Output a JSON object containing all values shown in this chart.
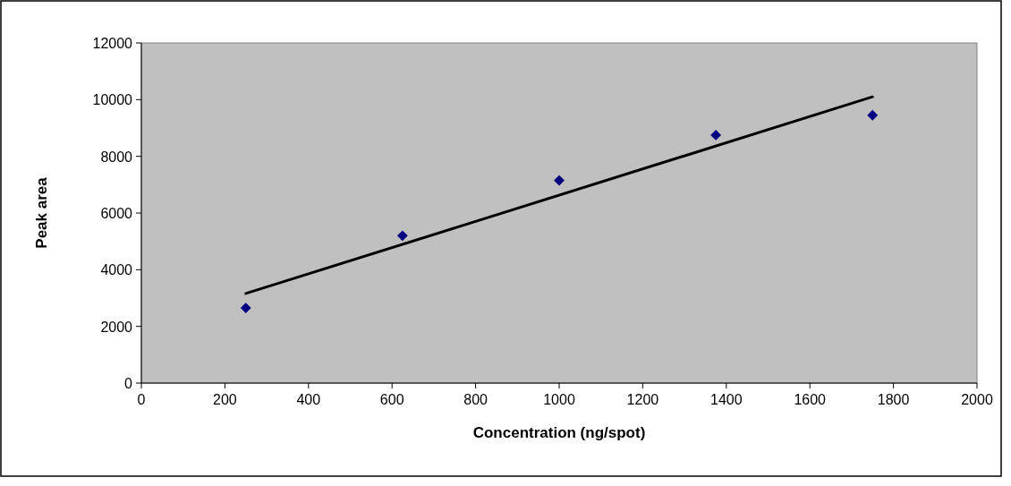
{
  "chart_data": {
    "type": "scatter",
    "xlabel": "Concentration (ng/spot)",
    "ylabel": "Peak area",
    "xlim": [
      0,
      2000
    ],
    "xticks": [
      0,
      200,
      400,
      600,
      800,
      1000,
      1200,
      1400,
      1600,
      1800,
      2000
    ],
    "ylim": [
      0,
      12000
    ],
    "yticks": [
      0,
      2000,
      4000,
      6000,
      8000,
      10000,
      12000
    ],
    "grid": false,
    "series": [
      {
        "color": "#000080",
        "marker": "diamond",
        "x": [
          250,
          625,
          1000,
          1375,
          1750
        ],
        "values": [
          2650,
          5200,
          7150,
          8750,
          9450
        ]
      },
      {
        "type": "line",
        "color": "#000000",
        "marker": "none",
        "line_style": "solid",
        "x": [
          250,
          1750
        ],
        "values": [
          3160,
          10100
        ]
      }
    ]
  }
}
